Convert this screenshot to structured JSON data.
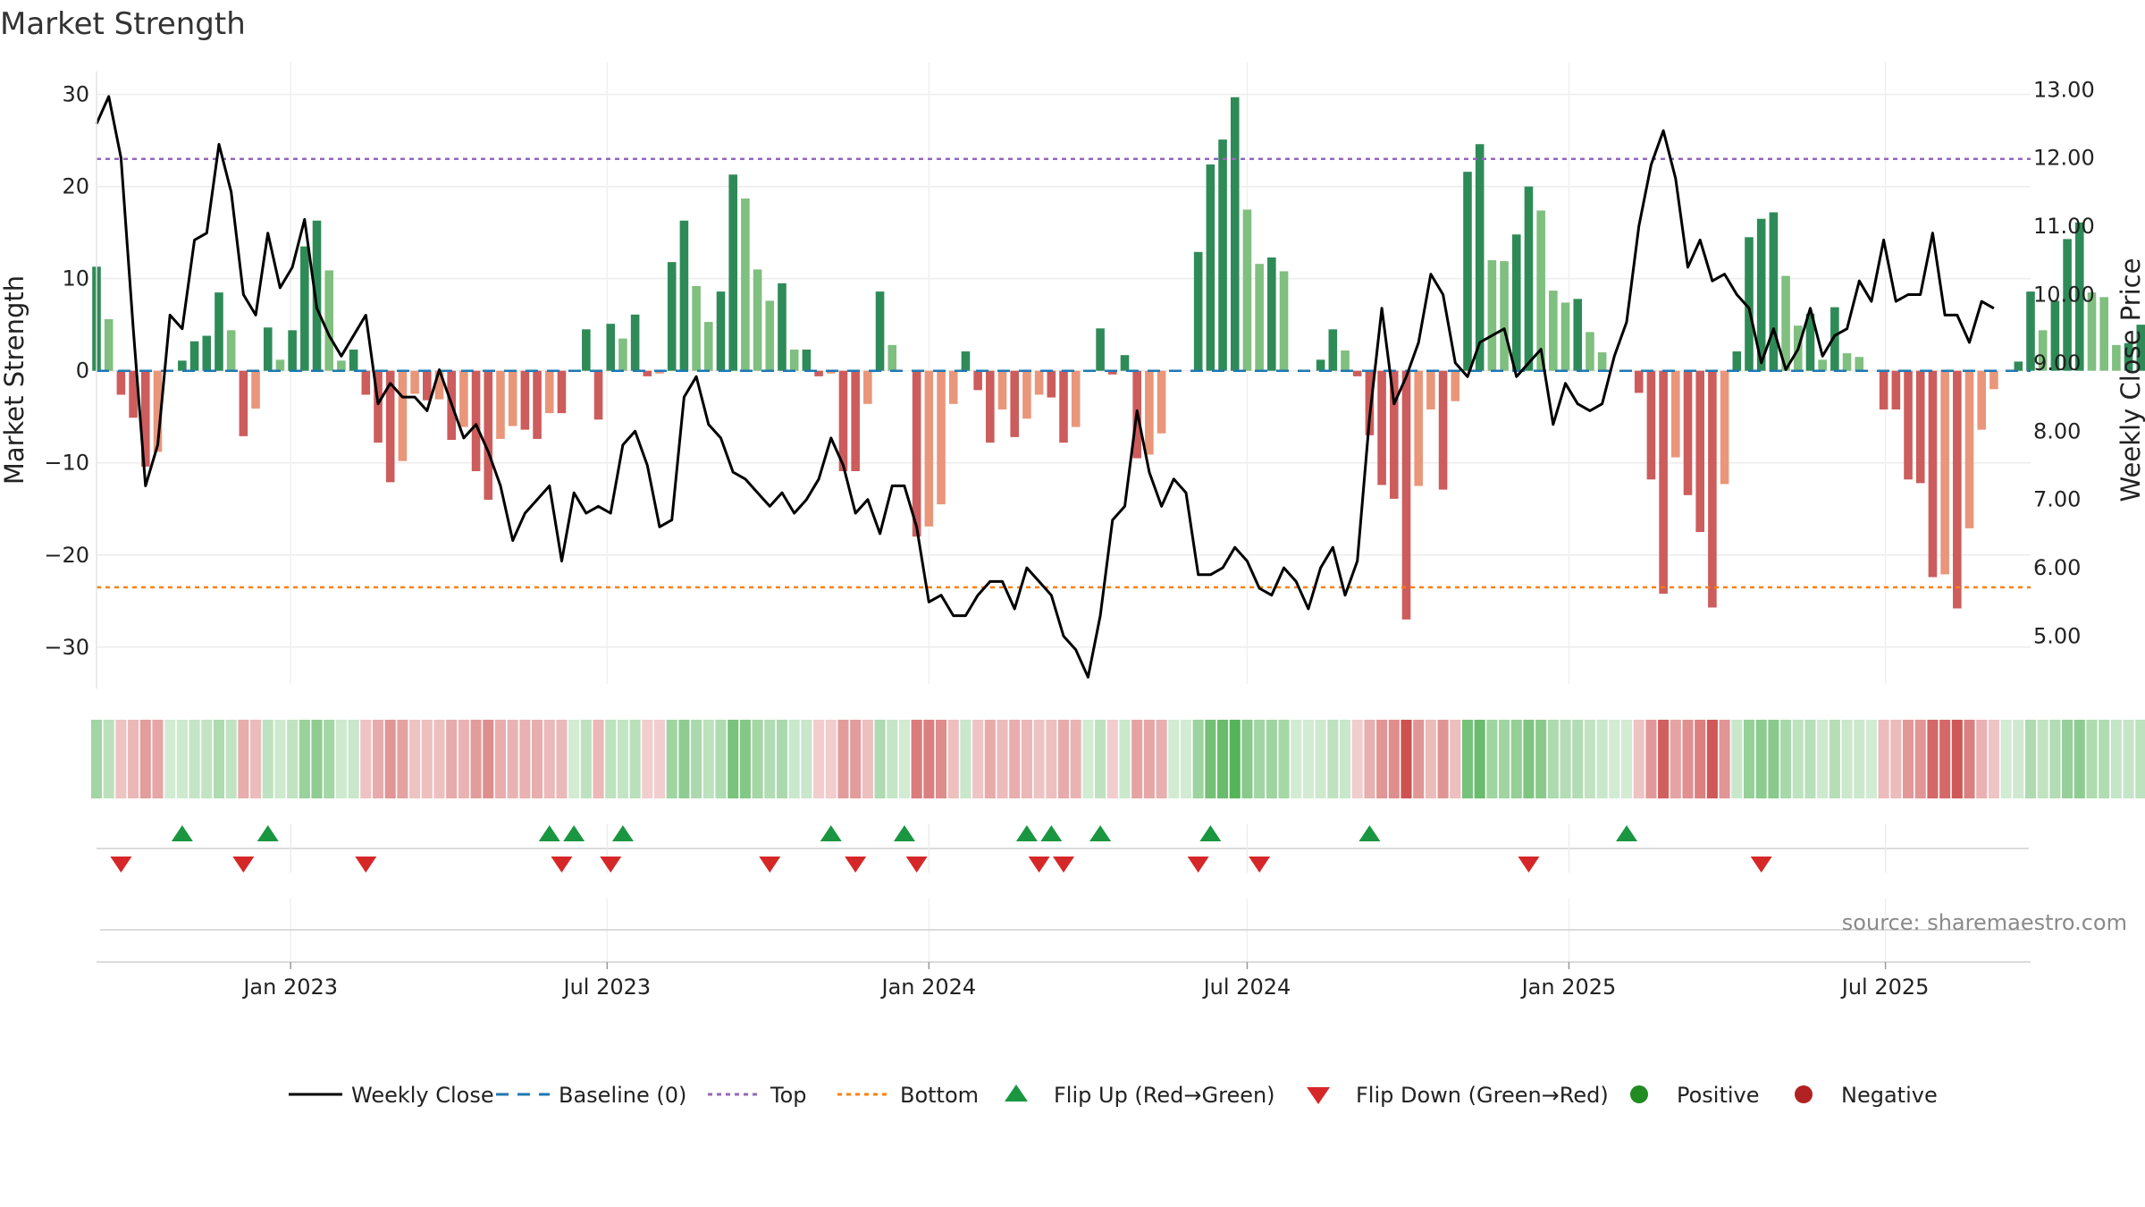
{
  "chart_data": {
    "type": "bar",
    "title": "Market Strength",
    "y_left_label": "Market Strength",
    "y_right_label": "Weekly Close Price",
    "y_left_range": [
      -34,
      32
    ],
    "y_right_range": [
      4.3,
      13.2
    ],
    "y_left_ticks": [
      30,
      20,
      10,
      0,
      -10,
      -20,
      -30
    ],
    "y_left_tick_labels": [
      "30",
      "20",
      "10",
      "0",
      "−10",
      "−20",
      "−30"
    ],
    "y_right_ticks": [
      13,
      12,
      11,
      10,
      9,
      8,
      7,
      6,
      5
    ],
    "y_right_tick_labels": [
      "13.00",
      "12.00",
      "11.00",
      "10.00",
      "9.00",
      "8.00",
      "7.00",
      "6.00",
      "5.00"
    ],
    "x_start": "2022-09-12",
    "x_end": "2025-09-22",
    "x_ticks": [
      {
        "date": "2023-01-01",
        "label": "Jan 2023"
      },
      {
        "date": "2023-07-01",
        "label": "Jul 2023"
      },
      {
        "date": "2024-01-01",
        "label": "Jan 2024"
      },
      {
        "date": "2024-07-01",
        "label": "Jul 2024"
      },
      {
        "date": "2025-01-01",
        "label": "Jan 2025"
      },
      {
        "date": "2025-07-01",
        "label": "Jul 2025"
      }
    ],
    "first_bar_date": "2022-09-12",
    "bar_interval_days": 7,
    "top_threshold": 23,
    "bottom_threshold": -23.5,
    "baseline": 0,
    "strength": [
      11.3,
      5.6,
      -2.6,
      -5.1,
      -10.4,
      -8.8,
      0,
      1.1,
      3.2,
      3.8,
      8.5,
      4.4,
      -7.1,
      -4.1,
      4.7,
      1.2,
      4.4,
      13.5,
      16.3,
      10.9,
      1.1,
      2.3,
      -2.6,
      -7.8,
      -12.1,
      -9.8,
      -2.5,
      -3.2,
      -3.1,
      -7.5,
      -6.1,
      -10.9,
      -14.0,
      -7.4,
      -6.0,
      -6.4,
      -7.4,
      -4.6,
      -4.6,
      0,
      4.5,
      -5.3,
      5.1,
      3.5,
      6.1,
      -0.6,
      -0.3,
      11.8,
      16.3,
      9.2,
      5.3,
      8.6,
      21.3,
      18.7,
      11.0,
      7.6,
      9.5,
      2.3,
      2.3,
      -0.6,
      -0.3,
      -10.9,
      -10.9,
      -3.6,
      8.6,
      2.8,
      0,
      -18.0,
      -16.9,
      -14.5,
      -3.6,
      2.1,
      -2.1,
      -7.8,
      -4.2,
      -7.2,
      -5.2,
      -2.6,
      -2.9,
      -7.8,
      -6.1,
      0,
      4.6,
      -0.4,
      1.7,
      -9.5,
      -9.1,
      -6.8,
      0,
      0,
      12.9,
      22.4,
      25.1,
      29.7,
      17.5,
      11.6,
      12.3,
      10.8,
      0,
      0,
      1.2,
      4.5,
      2.2,
      -0.6,
      -7.0,
      -12.4,
      -13.9,
      -27.0,
      -12.5,
      -4.2,
      -12.9,
      -3.3,
      21.6,
      24.6,
      12.0,
      11.9,
      14.8,
      20.0,
      17.4,
      8.7,
      7.4,
      7.8,
      4.2,
      2.0,
      0,
      0,
      -2.4,
      -11.8,
      -24.2,
      -9.4,
      -13.5,
      -17.5,
      -25.7,
      -12.3,
      2.1,
      14.5,
      16.5,
      17.2,
      10.3,
      4.9,
      6.2,
      1.2,
      6.9,
      1.9,
      1.5,
      0,
      -4.2,
      -4.2,
      -11.8,
      -12.2,
      -22.4,
      -22.1,
      -25.8,
      -17.1,
      -6.4,
      -2.0,
      0,
      1.0,
      8.6,
      4.4,
      7.6,
      14.3,
      16.1,
      8.5,
      8.0,
      2.8,
      3.0,
      5.0
    ],
    "weekly_close": [
      12.5,
      12.9,
      12.0,
      9.5,
      7.2,
      7.8,
      9.7,
      9.5,
      10.8,
      10.9,
      12.2,
      11.5,
      10.0,
      9.7,
      10.9,
      10.1,
      10.4,
      11.1,
      9.8,
      9.4,
      9.1,
      9.4,
      9.7,
      8.4,
      8.7,
      8.5,
      8.5,
      8.3,
      8.9,
      8.4,
      7.9,
      8.1,
      7.7,
      7.2,
      6.4,
      6.8,
      7.0,
      7.2,
      6.1,
      7.1,
      6.8,
      6.9,
      6.8,
      7.8,
      8.0,
      7.5,
      6.6,
      6.7,
      8.5,
      8.8,
      8.1,
      7.9,
      7.4,
      7.3,
      7.1,
      6.9,
      7.1,
      6.8,
      7.0,
      7.3,
      7.9,
      7.5,
      6.8,
      7.0,
      6.5,
      7.2,
      7.2,
      6.6,
      5.5,
      5.6,
      5.3,
      5.3,
      5.6,
      5.8,
      5.8,
      5.4,
      6.0,
      5.8,
      5.6,
      5.0,
      4.8,
      4.4,
      5.3,
      6.7,
      6.9,
      8.3,
      7.4,
      6.9,
      7.3,
      7.1,
      5.9,
      5.9,
      6.0,
      6.3,
      6.1,
      5.7,
      5.6,
      6.0,
      5.8,
      5.4,
      6.0,
      6.3,
      5.6,
      6.1,
      8.2,
      9.8,
      8.4,
      8.8,
      9.3,
      10.3,
      10.0,
      9.0,
      8.8,
      9.3,
      9.4,
      9.5,
      8.8,
      9.0,
      9.2,
      8.1,
      8.7,
      8.4,
      8.3,
      8.4,
      9.1,
      9.6,
      11.0,
      11.9,
      12.4,
      11.7,
      10.4,
      10.8,
      10.2,
      10.3,
      10.0,
      9.8,
      9.0,
      9.5,
      8.9,
      9.2,
      9.8,
      9.1,
      9.4,
      9.5,
      10.2,
      9.9,
      10.8,
      9.9,
      10.0,
      10.0,
      10.9,
      9.7,
      9.7,
      9.3,
      9.9,
      9.8
    ],
    "flip_up_indices": [
      7,
      14,
      37,
      39,
      43,
      60,
      66,
      76,
      78,
      82,
      91,
      104,
      125
    ],
    "flip_down_indices": [
      2,
      12,
      22,
      38,
      42,
      55,
      62,
      67,
      77,
      79,
      90,
      95,
      117,
      136
    ],
    "colors": {
      "strong_positive": "#2e8b57",
      "weak_positive": "#7fbf7f",
      "strong_negative": "#cd5c5c",
      "weak_negative": "#e9967a",
      "close_line": "#000000",
      "baseline": "#1f77b4",
      "top_line": "#9467bd",
      "bottom_line": "#ff7f0e",
      "flip_up": "#1a9641",
      "flip_down": "#d62728",
      "positive_dot": "#228b22",
      "negative_dot": "#b22222"
    },
    "legend": [
      {
        "label": "Weekly Close",
        "type": "line",
        "color": "#000000"
      },
      {
        "label": "Baseline (0)",
        "type": "dashed",
        "color": "#1f77b4"
      },
      {
        "label": "Top",
        "type": "dotted",
        "color": "#9467bd"
      },
      {
        "label": "Bottom",
        "type": "dotted",
        "color": "#ff7f0e"
      },
      {
        "label": "Flip Up (Red→Green)",
        "type": "triangle-up",
        "color": "#1a9641"
      },
      {
        "label": "Flip Down (Green→Red)",
        "type": "triangle-down",
        "color": "#d62728"
      },
      {
        "label": "Positive",
        "type": "dot",
        "color": "#228b22"
      },
      {
        "label": "Negative",
        "type": "dot",
        "color": "#b22222"
      }
    ],
    "legend_position": "bottom-center",
    "grid": true
  },
  "source_text": "source: sharemaestro.com"
}
